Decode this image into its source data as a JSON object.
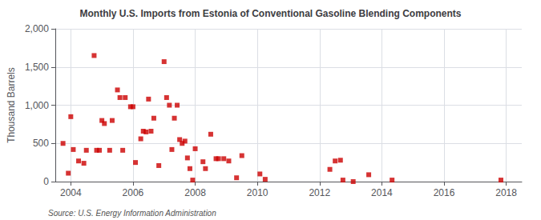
{
  "chart_data": {
    "type": "scatter",
    "title": "Monthly U.S. Imports from Estonia of Conventional Gasoline Blending Components",
    "ylabel": "Thousand Barrels",
    "annotations": [
      "Source: U.S. Energy Information Administration"
    ],
    "color": "#cc0000",
    "marker": "square",
    "grid": true,
    "xlim": [
      2003.5,
      2018.5
    ],
    "xticks": [
      2004,
      2006,
      2008,
      2010,
      2012,
      2014,
      2016,
      2018
    ],
    "ylim": [
      0,
      2000
    ],
    "yticks": [
      0,
      500,
      {
        "value": 1000,
        "label": "1,000"
      },
      {
        "value": 1500,
        "label": "1,500"
      },
      {
        "value": 2000,
        "label": "2,000"
      }
    ],
    "x": [
      2003.75,
      2003.92,
      2004.0,
      2004.08,
      2004.25,
      2004.42,
      2004.5,
      2004.75,
      2004.83,
      2004.92,
      2005.0,
      2005.08,
      2005.25,
      2005.33,
      2005.5,
      2005.58,
      2005.67,
      2005.75,
      2005.92,
      2006.0,
      2006.08,
      2006.25,
      2006.33,
      2006.42,
      2006.5,
      2006.58,
      2006.67,
      2006.83,
      2007.0,
      2007.08,
      2007.17,
      2007.25,
      2007.33,
      2007.42,
      2007.5,
      2007.58,
      2007.67,
      2007.75,
      2007.83,
      2007.92,
      2008.0,
      2008.25,
      2008.33,
      2008.5,
      2008.67,
      2008.75,
      2008.92,
      2009.08,
      2009.33,
      2009.5,
      2010.08,
      2010.25,
      2012.33,
      2012.5,
      2012.67,
      2012.75,
      2013.08,
      2013.58,
      2014.33,
      2017.83
    ],
    "values": [
      500,
      110,
      850,
      420,
      270,
      240,
      410,
      1650,
      410,
      410,
      800,
      760,
      410,
      800,
      1200,
      1100,
      410,
      1100,
      980,
      980,
      250,
      560,
      660,
      650,
      1080,
      660,
      830,
      210,
      1570,
      1100,
      1000,
      420,
      830,
      1000,
      550,
      500,
      530,
      310,
      170,
      20,
      430,
      260,
      170,
      620,
      300,
      300,
      300,
      270,
      50,
      340,
      100,
      30,
      160,
      270,
      280,
      20,
      0,
      90,
      20,
      20
    ]
  }
}
